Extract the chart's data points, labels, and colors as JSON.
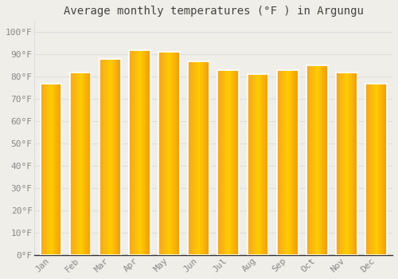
{
  "title": "Average monthly temperatures (°F ) in Argungu",
  "months": [
    "Jan",
    "Feb",
    "Mar",
    "Apr",
    "May",
    "Jun",
    "Jul",
    "Aug",
    "Sep",
    "Oct",
    "Nov",
    "Dec"
  ],
  "values": [
    77,
    82,
    88,
    92,
    91,
    87,
    83,
    81,
    83,
    85,
    82,
    77
  ],
  "bar_color_left": "#F5A623",
  "bar_color_right": "#FDD44A",
  "bar_color_mid": "#FBBC1A",
  "background_color": "#F0EEE8",
  "plot_bg_color": "#F0EEE8",
  "grid_color": "#DDDDDD",
  "ytick_labels": [
    "0°F",
    "10°F",
    "20°F",
    "30°F",
    "40°F",
    "50°F",
    "60°F",
    "70°F",
    "80°F",
    "90°F",
    "100°F"
  ],
  "ytick_values": [
    0,
    10,
    20,
    30,
    40,
    50,
    60,
    70,
    80,
    90,
    100
  ],
  "ylim": [
    0,
    105
  ],
  "title_fontsize": 10,
  "tick_fontsize": 8,
  "tick_color": "#888888",
  "axis_color": "#333333",
  "font_family": "monospace",
  "bar_width": 0.72,
  "gap_color": "#FFFFFF"
}
